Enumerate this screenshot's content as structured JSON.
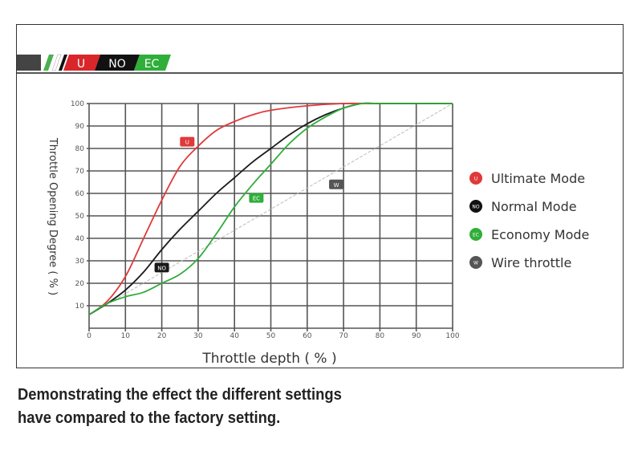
{
  "banner": {
    "labels": [
      "U",
      "NO",
      "EC"
    ]
  },
  "chart_data": {
    "type": "line",
    "title": "",
    "xlabel": "Throttle depth ( % )",
    "ylabel": "Throttle Opening Degree ( % )",
    "xlim": [
      0,
      100
    ],
    "ylim": [
      0,
      100
    ],
    "xticks": [
      0,
      10,
      20,
      30,
      40,
      50,
      60,
      70,
      80,
      90,
      100
    ],
    "yticks": [
      10,
      20,
      30,
      40,
      50,
      60,
      70,
      80,
      90,
      100
    ],
    "grid": true,
    "legend_position": "right",
    "series": [
      {
        "name": "Ultimate Mode",
        "tag": "U",
        "color": "#e0393a",
        "x": [
          0,
          5,
          10,
          15,
          20,
          25,
          30,
          35,
          40,
          45,
          50,
          60,
          70,
          80,
          100
        ],
        "y": [
          6,
          12,
          23,
          40,
          57,
          72,
          81,
          88,
          92,
          95,
          97,
          99,
          100,
          100,
          100
        ],
        "tag_at": [
          27,
          83
        ]
      },
      {
        "name": "Normal Mode",
        "tag": "NO",
        "color": "#1a1a1a",
        "x": [
          0,
          5,
          10,
          15,
          20,
          25,
          30,
          35,
          40,
          45,
          50,
          55,
          60,
          65,
          70,
          75,
          80,
          100
        ],
        "y": [
          6,
          11,
          17,
          25,
          35,
          44,
          52,
          60,
          67,
          74,
          80,
          86,
          91,
          95,
          98,
          100,
          100,
          100
        ],
        "tag_at": [
          20,
          27
        ]
      },
      {
        "name": "Economy Mode",
        "tag": "EC",
        "color": "#2fae3a",
        "x": [
          0,
          5,
          10,
          15,
          20,
          25,
          30,
          35,
          40,
          45,
          50,
          55,
          60,
          65,
          70,
          75,
          80,
          100
        ],
        "y": [
          6,
          11,
          14,
          16,
          20,
          24,
          31,
          42,
          54,
          64,
          73,
          82,
          89,
          94,
          98,
          100,
          100,
          100
        ],
        "tag_at": [
          46,
          58
        ]
      },
      {
        "name": "Wire throttle",
        "tag": "W",
        "color": "#bbbbbb",
        "x": [
          0,
          100
        ],
        "y": [
          6,
          100
        ],
        "tag_at": [
          68,
          64
        ]
      }
    ]
  },
  "caption": {
    "line1": "Demonstrating the effect the different settings",
    "line2": "have compared to the factory setting."
  }
}
